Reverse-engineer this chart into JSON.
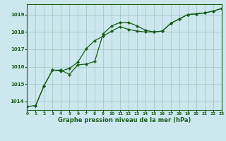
{
  "title": "Graphe pression niveau de la mer (hPa)",
  "background_color": "#cce8ee",
  "grid_color": "#aacece",
  "line_color": "#1a5c1a",
  "xlim": [
    0,
    23
  ],
  "ylim": [
    1013.5,
    1019.6
  ],
  "xticks": [
    0,
    1,
    2,
    3,
    4,
    5,
    6,
    7,
    8,
    9,
    10,
    11,
    12,
    13,
    14,
    15,
    16,
    17,
    18,
    19,
    20,
    21,
    22,
    23
  ],
  "yticks": [
    1014,
    1015,
    1016,
    1017,
    1018,
    1019
  ],
  "line1_x": [
    0,
    1,
    2,
    3,
    4,
    5,
    6,
    7,
    8,
    9,
    10,
    11,
    12,
    13,
    14,
    15,
    16,
    17,
    18,
    19,
    20,
    21,
    22,
    23
  ],
  "line1_y": [
    1013.7,
    1013.75,
    1014.9,
    1015.8,
    1015.8,
    1015.55,
    1016.1,
    1016.15,
    1016.3,
    1017.9,
    1018.35,
    1018.55,
    1018.55,
    1018.35,
    1018.1,
    1018.0,
    1018.05,
    1018.5,
    1018.75,
    1019.0,
    1019.05,
    1019.1,
    1019.2,
    1019.35
  ],
  "line2_x": [
    0,
    1,
    2,
    3,
    4,
    5,
    6,
    7,
    8,
    9,
    10,
    11,
    12,
    13,
    14,
    15,
    16,
    17,
    18,
    19,
    20,
    21,
    22,
    23
  ],
  "line2_y": [
    1013.7,
    1013.75,
    1014.9,
    1015.8,
    1015.75,
    1015.9,
    1016.25,
    1017.05,
    1017.5,
    1017.75,
    1018.05,
    1018.3,
    1018.15,
    1018.05,
    1018.0,
    1018.0,
    1018.05,
    1018.5,
    1018.75,
    1019.0,
    1019.05,
    1019.1,
    1019.2,
    1019.35
  ]
}
